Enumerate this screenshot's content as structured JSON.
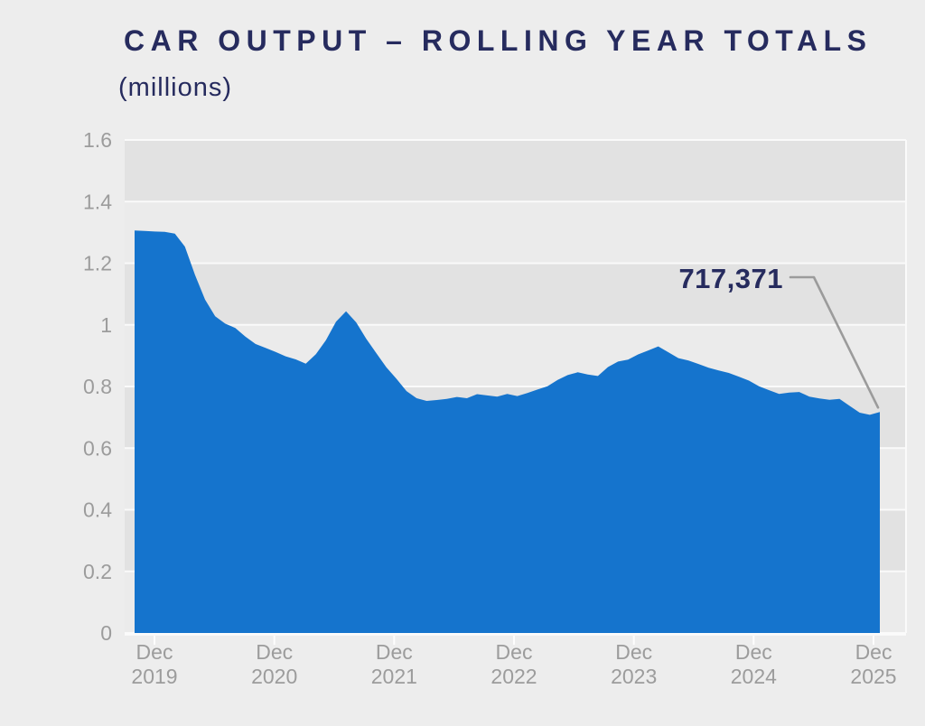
{
  "header": {
    "title": "CAR OUTPUT – ROLLING YEAR TOTALS",
    "subtitle": "(millions)"
  },
  "chart_data": {
    "type": "area",
    "title": "CAR OUTPUT – ROLLING YEAR TOTALS",
    "unit_label": "(millions)",
    "series_name": "Car output rolling year total",
    "x_monthly_from": "Oct 2019",
    "x_monthly_to": "Dec 2025",
    "values_millions": [
      1.306,
      1.305,
      1.303,
      1.302,
      1.296,
      1.254,
      1.162,
      1.082,
      1.028,
      1.004,
      0.99,
      0.962,
      0.938,
      0.925,
      0.912,
      0.898,
      0.888,
      0.874,
      0.905,
      0.95,
      1.01,
      1.044,
      1.008,
      0.955,
      0.908,
      0.862,
      0.825,
      0.785,
      0.762,
      0.753,
      0.756,
      0.76,
      0.766,
      0.762,
      0.775,
      0.771,
      0.767,
      0.776,
      0.769,
      0.779,
      0.79,
      0.801,
      0.821,
      0.837,
      0.846,
      0.839,
      0.834,
      0.863,
      0.881,
      0.887,
      0.904,
      0.917,
      0.93,
      0.911,
      0.892,
      0.884,
      0.873,
      0.861,
      0.852,
      0.844,
      0.832,
      0.819,
      0.801,
      0.788,
      0.776,
      0.78,
      0.782,
      0.767,
      0.761,
      0.757,
      0.76,
      0.737,
      0.715,
      0.708,
      0.717
    ],
    "x_tick_indices": [
      2,
      14,
      26,
      38,
      50,
      62,
      74
    ],
    "x_tick_labels": [
      [
        "Dec",
        "2019"
      ],
      [
        "Dec",
        "2020"
      ],
      [
        "Dec",
        "2021"
      ],
      [
        "Dec",
        "2022"
      ],
      [
        "Dec",
        "2023"
      ],
      [
        "Dec",
        "2024"
      ],
      [
        "Dec",
        "2025"
      ]
    ],
    "y_tick_labels": [
      "0",
      "0.2",
      "0.4",
      "0.6",
      "0.8",
      "1",
      "1.2",
      "1.4",
      "1.6"
    ],
    "ylim": [
      0,
      1.6
    ],
    "grid": {
      "horizontal_bands": true,
      "band_step": 0.2
    },
    "legend": {
      "visible": false
    },
    "annotation": {
      "label": "717,371",
      "value_millions": 0.717371,
      "points_to": "last data point (Dec 2025)"
    },
    "colors": {
      "area": "#1574cd",
      "band_dark": "#e2e2e2",
      "band_light": "#ebebeb",
      "gridline": "#fafafa",
      "baseline": "#fbfbfb",
      "tick": "#fdfdfd",
      "axis_text": "#9c9c9c",
      "navy_text": "#262b5e",
      "leader_line": "#9b9b9b",
      "page_background": "#ededed"
    }
  }
}
